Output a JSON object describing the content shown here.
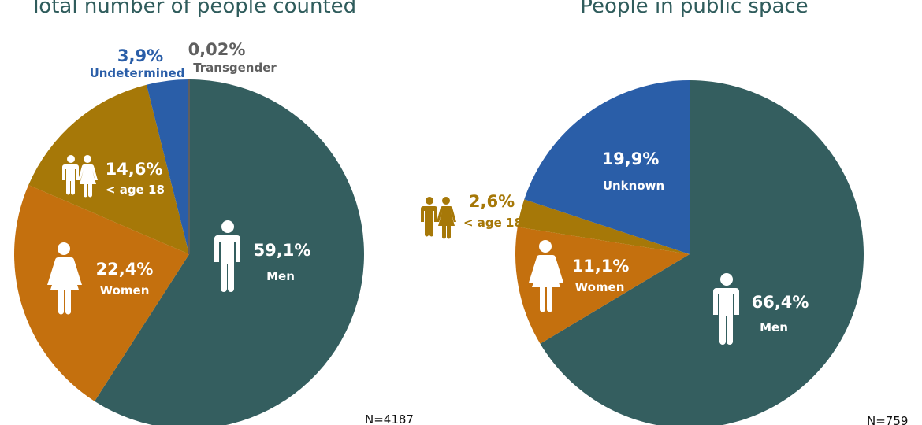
{
  "chart_data": [
    {
      "type": "pie",
      "title": "Total number of people counted",
      "note": "N=4187",
      "start": "top",
      "direction": "clockwise",
      "slices": [
        {
          "label": "Men",
          "pct_label": "59,1%",
          "value": 59.1,
          "color": "#345e5f",
          "icon": "man-icon"
        },
        {
          "label": "Women",
          "pct_label": "22,4%",
          "value": 22.4,
          "color": "#c4700e",
          "icon": "woman-icon"
        },
        {
          "label": "< age 18",
          "pct_label": "14,6%",
          "value": 14.6,
          "color": "#a67808",
          "icon": "children-icon"
        },
        {
          "label": "Undetermined",
          "pct_label": "3,9%",
          "value": 3.9,
          "color": "#2a5ea8",
          "icon": ""
        },
        {
          "label": "Transgender",
          "pct_label": "0,02%",
          "value": 0.02,
          "color": "#5f5f5f",
          "icon": ""
        }
      ]
    },
    {
      "type": "pie",
      "title": "People in public space",
      "note": "N=759",
      "start": "top",
      "direction": "clockwise",
      "slices": [
        {
          "label": "Men",
          "pct_label": "66,4%",
          "value": 66.4,
          "color": "#345e5f",
          "icon": "man-icon"
        },
        {
          "label": "Women",
          "pct_label": "11,1%",
          "value": 11.1,
          "color": "#c4700e",
          "icon": "woman-icon"
        },
        {
          "label": "< age 18",
          "pct_label": "2,6%",
          "value": 2.6,
          "color": "#a67808",
          "icon": "children-icon"
        },
        {
          "label": "Unknown",
          "pct_label": "19,9%",
          "value": 19.9,
          "color": "#2a5ea8",
          "icon": ""
        }
      ]
    }
  ]
}
